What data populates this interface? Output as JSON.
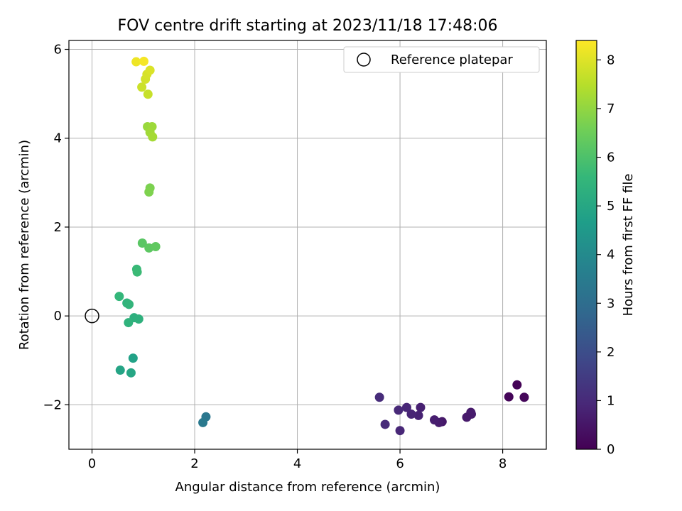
{
  "chart_data": {
    "type": "scatter",
    "title": "FOV centre drift starting at 2023/11/18 17:48:06",
    "xlabel": "Angular distance from reference (arcmin)",
    "ylabel": "Rotation from reference (arcmin)",
    "xlim": [
      -0.45,
      8.85
    ],
    "ylim": [
      -3.0,
      6.2
    ],
    "xticks": [
      0,
      2,
      4,
      6,
      8
    ],
    "xtick_labels": [
      "0",
      "2",
      "4",
      "6",
      "8"
    ],
    "yticks": [
      -2,
      0,
      2,
      4,
      6
    ],
    "ytick_labels": [
      "−2",
      "0",
      "2",
      "4",
      "6"
    ],
    "grid": true,
    "legend": {
      "position": "top-right",
      "entries": [
        "Reference platepar"
      ]
    },
    "reference_point": {
      "name": "Reference platepar",
      "x": 0,
      "y": 0,
      "marker": "open-circle"
    },
    "colorbar": {
      "label": "Hours from first FF file",
      "range": [
        0,
        8.4
      ],
      "ticks": [
        0,
        1,
        2,
        3,
        4,
        5,
        6,
        7,
        8
      ],
      "tick_labels": [
        "0",
        "1",
        "2",
        "3",
        "4",
        "5",
        "6",
        "7",
        "8"
      ],
      "colormap": "viridis"
    },
    "colormap_stops": [
      "#440154",
      "#482878",
      "#3e4989",
      "#31688e",
      "#26828e",
      "#1f9e89",
      "#35b779",
      "#6ece58",
      "#b5de2b",
      "#fde725"
    ],
    "points": [
      {
        "x": 8.28,
        "y": -1.55,
        "h": 0.05
      },
      {
        "x": 8.12,
        "y": -1.82,
        "h": 0.1
      },
      {
        "x": 8.42,
        "y": -1.83,
        "h": 0.15
      },
      {
        "x": 7.38,
        "y": -2.17,
        "h": 0.6
      },
      {
        "x": 7.39,
        "y": -2.21,
        "h": 0.65
      },
      {
        "x": 7.3,
        "y": -2.28,
        "h": 0.6
      },
      {
        "x": 6.82,
        "y": -2.38,
        "h": 0.55
      },
      {
        "x": 6.76,
        "y": -2.4,
        "h": 0.65
      },
      {
        "x": 6.67,
        "y": -2.34,
        "h": 0.7
      },
      {
        "x": 6.4,
        "y": -2.06,
        "h": 0.75
      },
      {
        "x": 6.36,
        "y": -2.24,
        "h": 0.8
      },
      {
        "x": 6.22,
        "y": -2.21,
        "h": 0.85
      },
      {
        "x": 6.13,
        "y": -2.06,
        "h": 0.9
      },
      {
        "x": 5.97,
        "y": -2.12,
        "h": 0.95
      },
      {
        "x": 6.0,
        "y": -2.58,
        "h": 0.9
      },
      {
        "x": 5.71,
        "y": -2.44,
        "h": 1.0
      },
      {
        "x": 5.6,
        "y": -1.83,
        "h": 1.05
      },
      {
        "x": 2.22,
        "y": -2.27,
        "h": 3.35
      },
      {
        "x": 2.16,
        "y": -2.4,
        "h": 3.4
      },
      {
        "x": 0.8,
        "y": -0.95,
        "h": 4.8
      },
      {
        "x": 0.55,
        "y": -1.22,
        "h": 4.9
      },
      {
        "x": 0.76,
        "y": -1.28,
        "h": 4.95
      },
      {
        "x": 0.82,
        "y": -0.04,
        "h": 5.3
      },
      {
        "x": 0.91,
        "y": -0.07,
        "h": 5.35
      },
      {
        "x": 0.71,
        "y": -0.15,
        "h": 5.4
      },
      {
        "x": 0.68,
        "y": 0.29,
        "h": 5.45
      },
      {
        "x": 0.72,
        "y": 0.26,
        "h": 5.5
      },
      {
        "x": 0.53,
        "y": 0.44,
        "h": 5.55
      },
      {
        "x": 0.87,
        "y": 1.05,
        "h": 5.65
      },
      {
        "x": 0.88,
        "y": 0.99,
        "h": 5.7
      },
      {
        "x": 0.98,
        "y": 1.64,
        "h": 6.2
      },
      {
        "x": 1.11,
        "y": 1.53,
        "h": 6.25
      },
      {
        "x": 1.24,
        "y": 1.56,
        "h": 6.3
      },
      {
        "x": 1.13,
        "y": 2.88,
        "h": 6.7
      },
      {
        "x": 1.11,
        "y": 2.79,
        "h": 6.75
      },
      {
        "x": 1.08,
        "y": 4.26,
        "h": 7.1
      },
      {
        "x": 1.17,
        "y": 4.26,
        "h": 7.15
      },
      {
        "x": 1.13,
        "y": 4.13,
        "h": 7.2
      },
      {
        "x": 1.18,
        "y": 4.03,
        "h": 7.25
      },
      {
        "x": 1.09,
        "y": 4.99,
        "h": 7.7
      },
      {
        "x": 0.97,
        "y": 5.15,
        "h": 7.75
      },
      {
        "x": 1.04,
        "y": 5.33,
        "h": 7.85
      },
      {
        "x": 1.07,
        "y": 5.44,
        "h": 7.9
      },
      {
        "x": 1.13,
        "y": 5.53,
        "h": 7.95
      },
      {
        "x": 0.86,
        "y": 5.72,
        "h": 8.2
      },
      {
        "x": 1.01,
        "y": 5.73,
        "h": 8.3
      }
    ]
  }
}
